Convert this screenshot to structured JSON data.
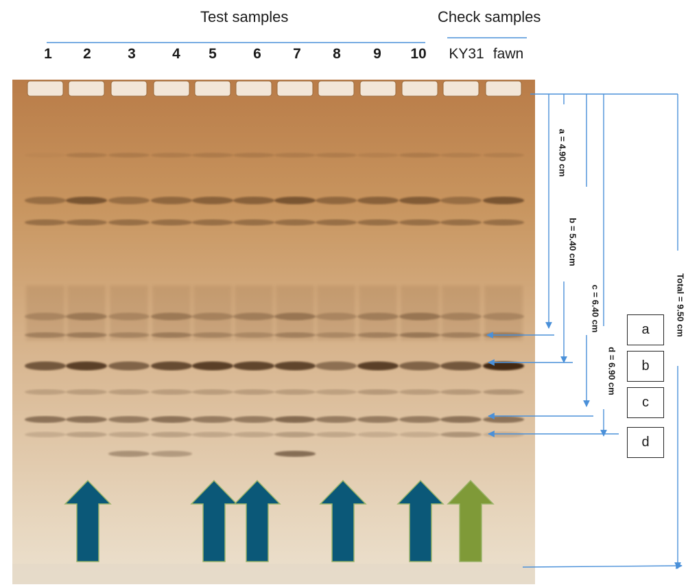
{
  "header": {
    "test_samples": "Test samples",
    "check_samples": "Check samples"
  },
  "lanes": [
    "1",
    "2",
    "3",
    "4",
    "5",
    "6",
    "7",
    "8",
    "9",
    "10",
    "KY31",
    "fawn"
  ],
  "measurements": {
    "a": "a = 4.90 cm",
    "b": "b = 5.40 cm",
    "c": "c = 6.40 cm",
    "d": "d = 6.90 cm",
    "total": "Total = 9.50 cm"
  },
  "band_boxes": [
    "a",
    "b",
    "c",
    "d"
  ],
  "arrows": {
    "test_color": "#0b5878",
    "check_color": "#7f9a38",
    "marked_lanes": [
      "2",
      "5",
      "6",
      "8",
      "10",
      "KY31"
    ]
  },
  "colors": {
    "gel_top": "#b97c48",
    "gel_bottom": "#e9dcc8",
    "guide_line": "#4a90d9"
  }
}
